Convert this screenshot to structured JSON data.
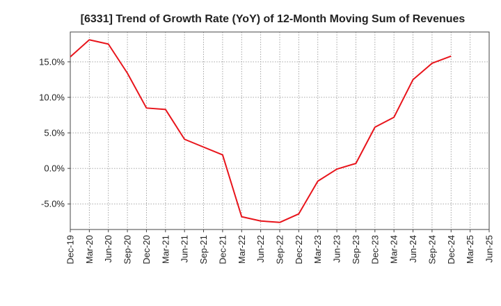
{
  "chart_data": {
    "type": "line",
    "title": "[6331]  Trend of Growth Rate (YoY) of 12-Month Moving Sum of Revenues",
    "xlabel": "",
    "ylabel": "",
    "x_tick_labels": [
      "Dec-19",
      "Mar-20",
      "Jun-20",
      "Sep-20",
      "Dec-20",
      "Mar-21",
      "Jun-21",
      "Sep-21",
      "Dec-21",
      "Mar-22",
      "Jun-22",
      "Sep-22",
      "Dec-22",
      "Mar-23",
      "Jun-23",
      "Sep-23",
      "Dec-23",
      "Mar-24",
      "Jun-24",
      "Sep-24",
      "Dec-24",
      "Mar-25",
      "Jun-25"
    ],
    "y_ticks": [
      15.0,
      10.0,
      5.0,
      0.0,
      -5.0
    ],
    "y_tick_labels": [
      "15.0%",
      "10.0%",
      "5.0%",
      "0.0%",
      "-5.0%"
    ],
    "ylim": [
      -8.6,
      19.2
    ],
    "grid": true,
    "series": [
      {
        "color": "#e8141b",
        "x": [
          "Dec-19",
          "Mar-20",
          "Jun-20",
          "Sep-20",
          "Dec-20",
          "Mar-21",
          "Jun-21",
          "Sep-21",
          "Dec-21",
          "Mar-22",
          "Jun-22",
          "Sep-22",
          "Dec-22",
          "Mar-23",
          "Jun-23",
          "Sep-23",
          "Dec-23",
          "Mar-24",
          "Jun-24",
          "Sep-24",
          "Dec-24"
        ],
        "values": [
          15.7,
          18.1,
          17.5,
          13.4,
          8.5,
          8.3,
          4.1,
          3.0,
          1.9,
          -6.8,
          -7.4,
          -7.6,
          -6.4,
          -1.8,
          -0.1,
          0.7,
          5.8,
          7.2,
          12.5,
          14.8,
          15.8
        ]
      }
    ]
  }
}
